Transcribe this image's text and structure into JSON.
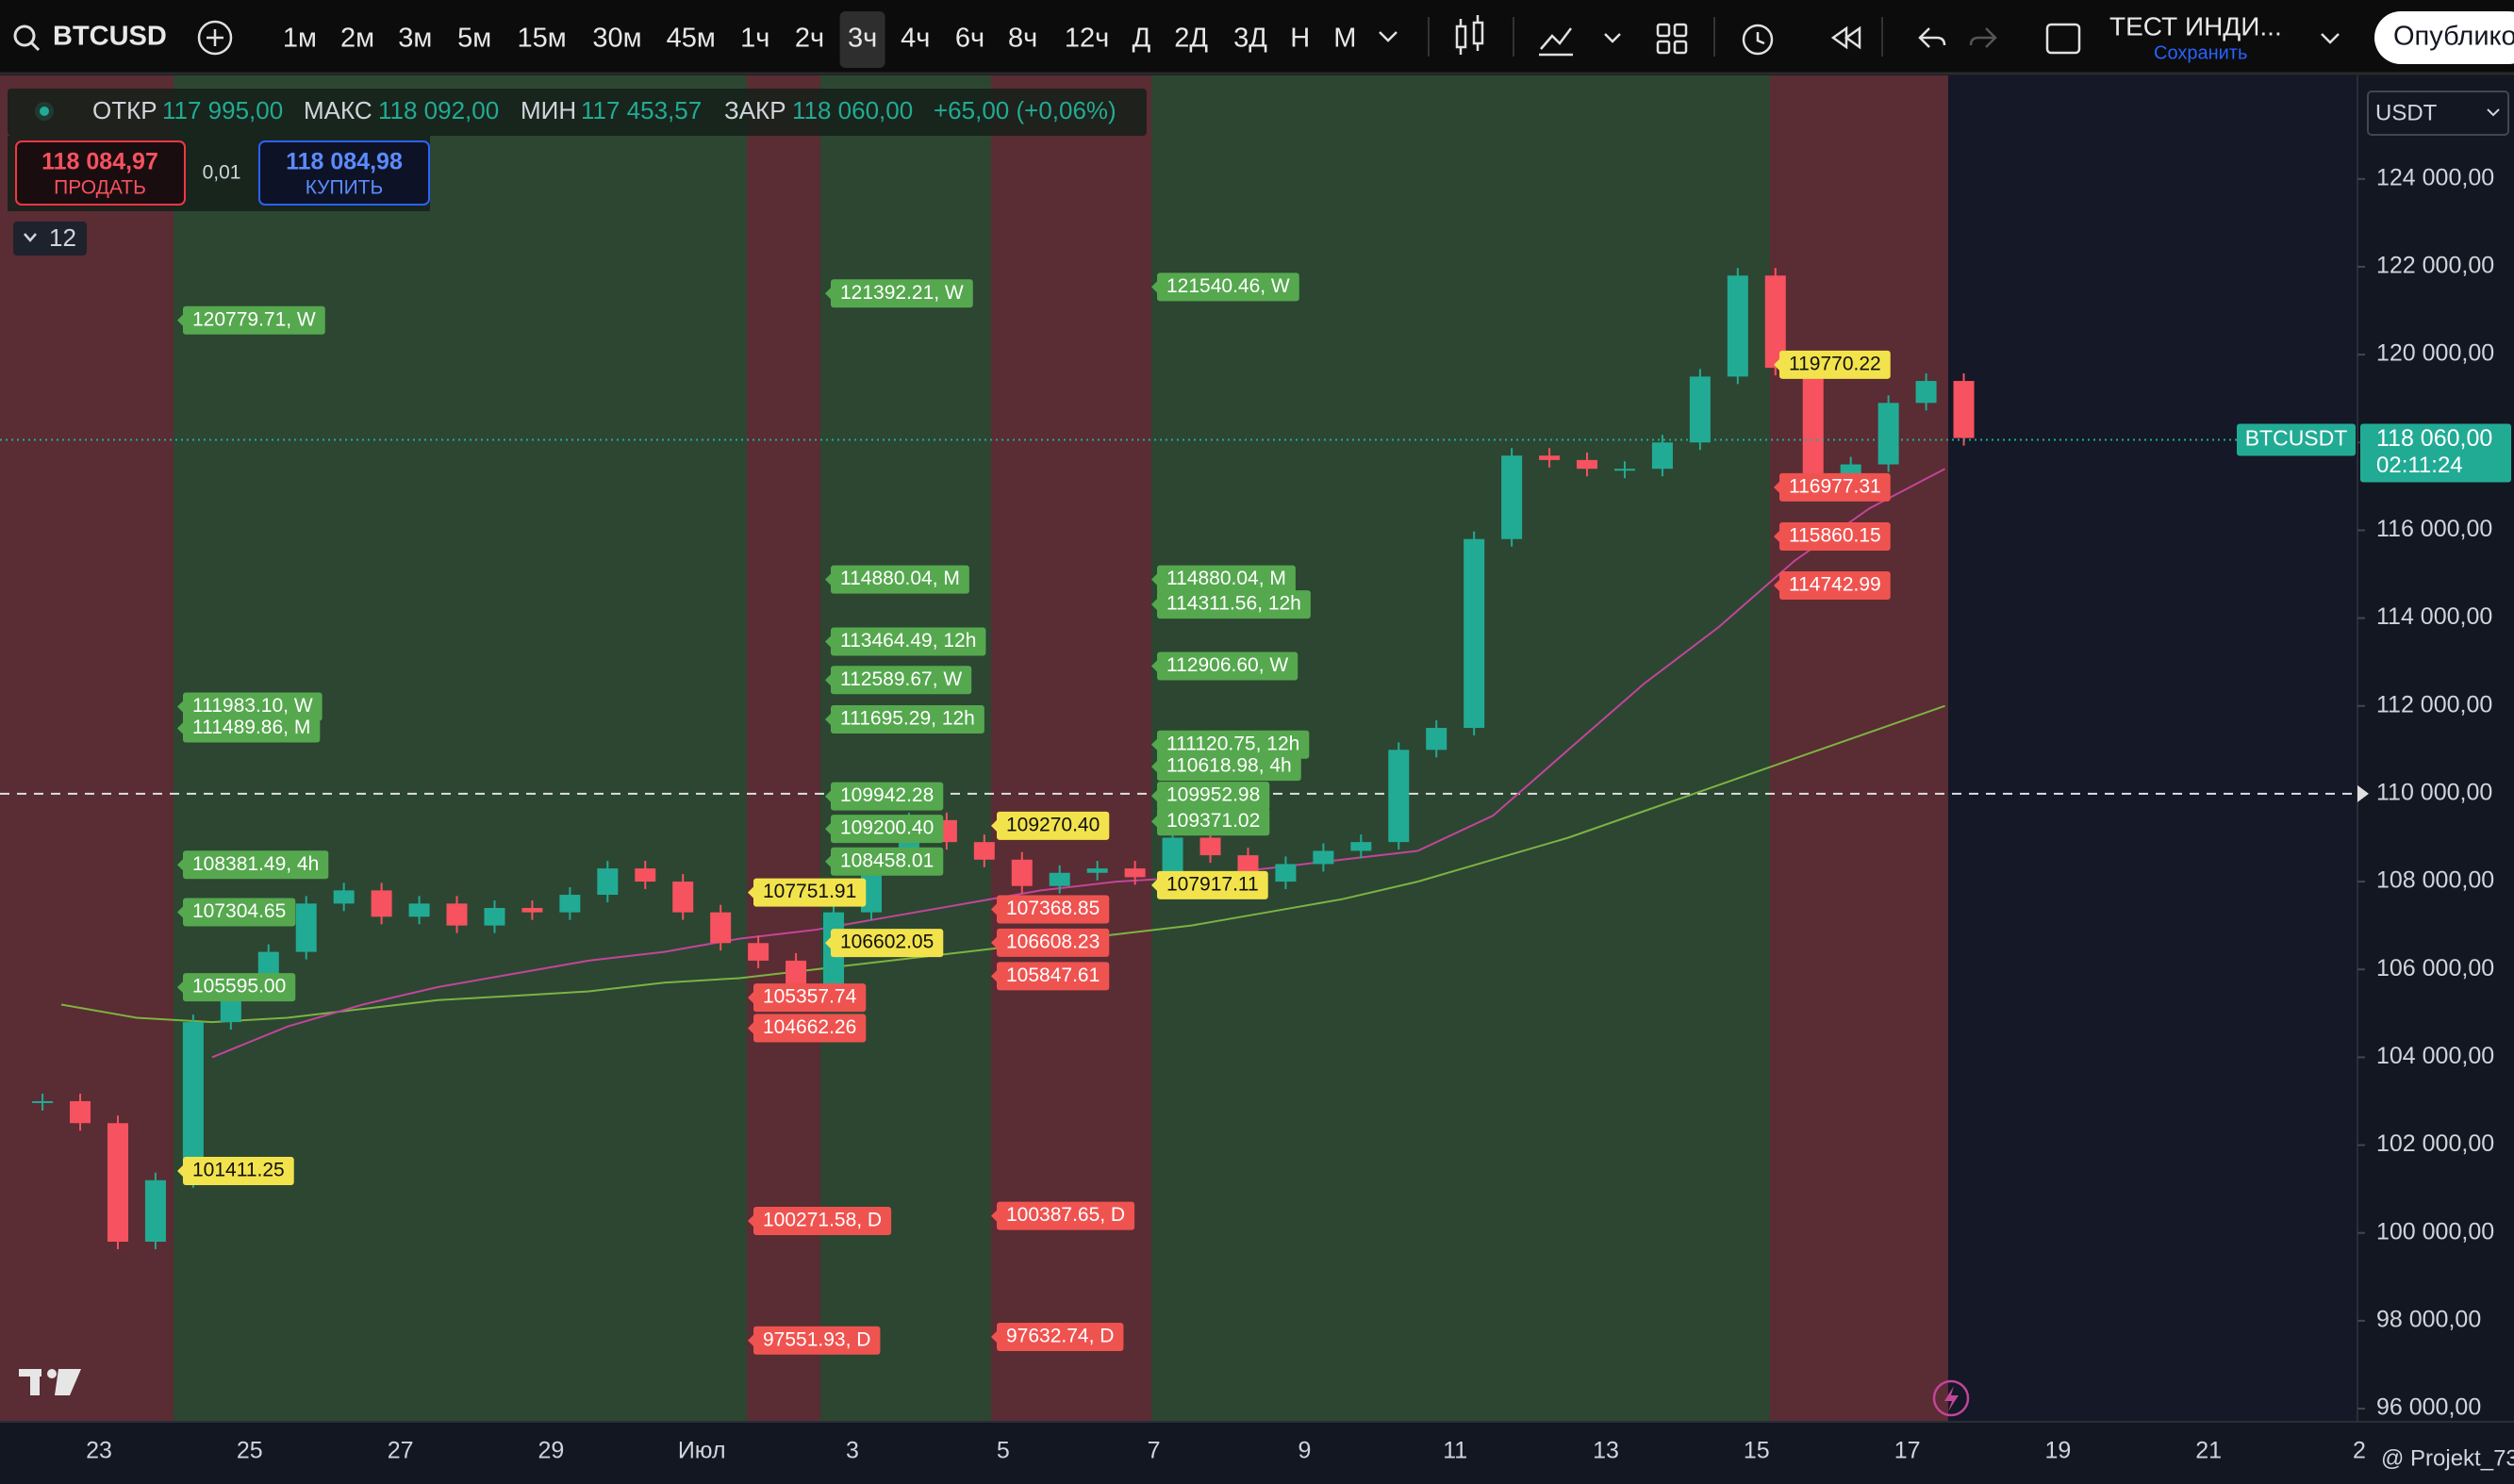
{
  "toolbar": {
    "symbol": "BTCUSD",
    "timeframes": [
      "1м",
      "2м",
      "3м",
      "5м",
      "15м",
      "30м",
      "45м",
      "1ч",
      "2ч",
      "3ч",
      "4ч",
      "6ч",
      "8ч",
      "12ч",
      "Д",
      "2Д",
      "3Д",
      "Н",
      "М"
    ],
    "layout_name": "ТЕСТ ИНДИ...",
    "save": "Сохранить",
    "publish": "Опублико"
  },
  "legend": {
    "open_label": "ОТКР",
    "open": "117 995,00",
    "high_label": "МАКС",
    "high": "118 092,00",
    "low_label": "МИН",
    "low": "117 453,57",
    "close_label": "ЗАКР",
    "close": "118 060,00",
    "change": "+65,00 (+0,06%)"
  },
  "trade": {
    "sell_price": "118 084,97",
    "sell": "ПРОДАТЬ",
    "spread": "0,01",
    "buy_price": "118 084,98",
    "buy": "КУПИТЬ"
  },
  "indicators_count": 12,
  "currency": "USDT",
  "watermark": "@ Projekt_73",
  "chart_data": {
    "type": "candlestick",
    "closes": [
      103000,
      102500,
      99800,
      101200,
      104800,
      105600,
      106400,
      107500,
      107800,
      107200,
      107500,
      107000,
      107400,
      107300,
      107700,
      108300,
      108000,
      107300,
      106600,
      106200,
      105500,
      107300,
      108600,
      109400,
      108900,
      108500,
      107900,
      108200,
      108300,
      108100,
      109000,
      108600,
      108000,
      108400,
      108700,
      108900,
      111000,
      111500,
      115800,
      117700,
      117600,
      117400,
      117400,
      118000,
      119500,
      121800,
      119700,
      117200,
      117500,
      118900,
      119400,
      118100
    ],
    "ma_fast": {
      "color": "#c2459a",
      "values": [
        104000,
        104700,
        105200,
        105600,
        105900,
        106200,
        106400,
        106700,
        106900,
        107200,
        107500,
        107800,
        108000,
        108100,
        108300,
        108500,
        108700,
        109500,
        111000,
        112500,
        113800,
        115300,
        116500,
        117400
      ]
    },
    "ma_slow": {
      "color": "#7cb342",
      "values": [
        105200,
        104900,
        104800,
        104900,
        105100,
        105300,
        105400,
        105500,
        105700,
        105800,
        106000,
        106200,
        106400,
        106600,
        106800,
        107000,
        107300,
        107600,
        108000,
        108500,
        109000,
        109600,
        110200,
        110800,
        111400,
        112000
      ]
    },
    "up_color": "#22ab94",
    "down_color": "#f7525f",
    "ylim": [
      95700,
      126400
    ],
    "yticks": [
      {
        "value": 124000,
        "label": "124 000,00"
      },
      {
        "value": 122000,
        "label": "122 000,00"
      },
      {
        "value": 120000,
        "label": "120 000,00"
      },
      {
        "value": 118000,
        "label": "118 000,00"
      },
      {
        "value": 116000,
        "label": "116 000,00"
      },
      {
        "value": 114000,
        "label": "114 000,00"
      },
      {
        "value": 112000,
        "label": "112 000,00"
      },
      {
        "value": 110000,
        "label": "110 000,00"
      },
      {
        "value": 108000,
        "label": "108 000,00"
      },
      {
        "value": 106000,
        "label": "106 000,00"
      },
      {
        "value": 104000,
        "label": "104 000,00"
      },
      {
        "value": 102000,
        "label": "102 000,00"
      },
      {
        "value": 100000,
        "label": "100 000,00"
      },
      {
        "value": 98000,
        "label": "98 000,00"
      },
      {
        "value": 96000,
        "label": "96 000,00"
      }
    ],
    "x_labels": [
      "23",
      "25",
      "27",
      "29",
      "Июл",
      "3",
      "5",
      "7",
      "9",
      "11",
      "13",
      "15",
      "17",
      "19",
      "21",
      "2"
    ],
    "dashed_level": 110000,
    "last_price": {
      "symbol": "BTCUSDT",
      "price": {
        "value": 118060,
        "label": "118 060,00"
      },
      "countdown": "02:11:24",
      "color": "#22ab94"
    },
    "label_columns": [
      [
        {
          "value": 120779.71,
          "label": "120779.71, W",
          "color": "#55a84e"
        },
        {
          "value": 111983.1,
          "label": "111983.10, W",
          "color": "#55a84e"
        },
        {
          "value": 111489.86,
          "label": "111489.86, M",
          "color": "#55a84e"
        },
        {
          "value": 108381.49,
          "label": "108381.49, 4h",
          "color": "#55a84e"
        },
        {
          "value": 107304.65,
          "label": "107304.65",
          "color": "#55a84e"
        },
        {
          "value": 105595.0,
          "label": "105595.00",
          "color": "#55a84e"
        },
        {
          "value": 101411.25,
          "label": "101411.25",
          "color": "#f2e34c"
        }
      ],
      [
        {
          "value": 107751.91,
          "label": "107751.91",
          "color": "#f2e34c"
        },
        {
          "value": 105357.74,
          "label": "105357.74",
          "color": "#ef5350"
        },
        {
          "value": 104662.26,
          "label": "104662.26",
          "color": "#ef5350"
        },
        {
          "value": 100271.58,
          "label": "100271.58, D",
          "color": "#ef5350"
        },
        {
          "value": 97551.93,
          "label": "97551.93, D",
          "color": "#ef5350"
        }
      ],
      [
        {
          "value": 121392.21,
          "label": "121392.21, W",
          "color": "#55a84e"
        },
        {
          "value": 114880.04,
          "label": "114880.04, M",
          "color": "#55a84e"
        },
        {
          "value": 113464.49,
          "label": "113464.49, 12h",
          "color": "#55a84e"
        },
        {
          "value": 112589.67,
          "label": "112589.67, W",
          "color": "#55a84e"
        },
        {
          "value": 111695.29,
          "label": "111695.29, 12h",
          "color": "#55a84e"
        },
        {
          "value": 109942.28,
          "label": "109942.28",
          "color": "#55a84e"
        },
        {
          "value": 109200.4,
          "label": "109200.40",
          "color": "#55a84e"
        },
        {
          "value": 108458.01,
          "label": "108458.01",
          "color": "#55a84e"
        },
        {
          "value": 106602.05,
          "label": "106602.05",
          "color": "#f2e34c"
        }
      ],
      [
        {
          "value": 109270.4,
          "label": "109270.40",
          "color": "#f2e34c"
        },
        {
          "value": 107368.85,
          "label": "107368.85",
          "color": "#ef5350"
        },
        {
          "value": 106608.23,
          "label": "106608.23",
          "color": "#ef5350"
        },
        {
          "value": 105847.61,
          "label": "105847.61",
          "color": "#ef5350"
        },
        {
          "value": 100387.65,
          "label": "100387.65, D",
          "color": "#ef5350"
        },
        {
          "value": 97632.74,
          "label": "97632.74, D",
          "color": "#ef5350"
        }
      ],
      [
        {
          "value": 121540.46,
          "label": "121540.46, W",
          "color": "#55a84e"
        },
        {
          "value": 114880.04,
          "label": "114880.04, M",
          "color": "#55a84e"
        },
        {
          "value": 114311.56,
          "label": "114311.56, 12h",
          "color": "#55a84e"
        },
        {
          "value": 112906.6,
          "label": "112906.60, W",
          "color": "#55a84e"
        },
        {
          "value": 111120.75,
          "label": "111120.75, 12h",
          "color": "#55a84e"
        },
        {
          "value": 110618.98,
          "label": "110618.98, 4h",
          "color": "#55a84e"
        },
        {
          "value": 109952.98,
          "label": "109952.98",
          "color": "#55a84e"
        },
        {
          "value": 109371.02,
          "label": "109371.02",
          "color": "#55a84e"
        },
        {
          "value": 107917.11,
          "label": "107917.11",
          "color": "#f2e34c"
        }
      ],
      [
        {
          "value": 119770.22,
          "label": "119770.22",
          "color": "#f2e34c"
        },
        {
          "value": 116977.31,
          "label": "116977.31",
          "color": "#ef5350"
        },
        {
          "value": 115860.15,
          "label": "115860.15",
          "color": "#ef5350"
        },
        {
          "value": 114742.99,
          "label": "114742.99",
          "color": "#ef5350"
        }
      ]
    ]
  }
}
